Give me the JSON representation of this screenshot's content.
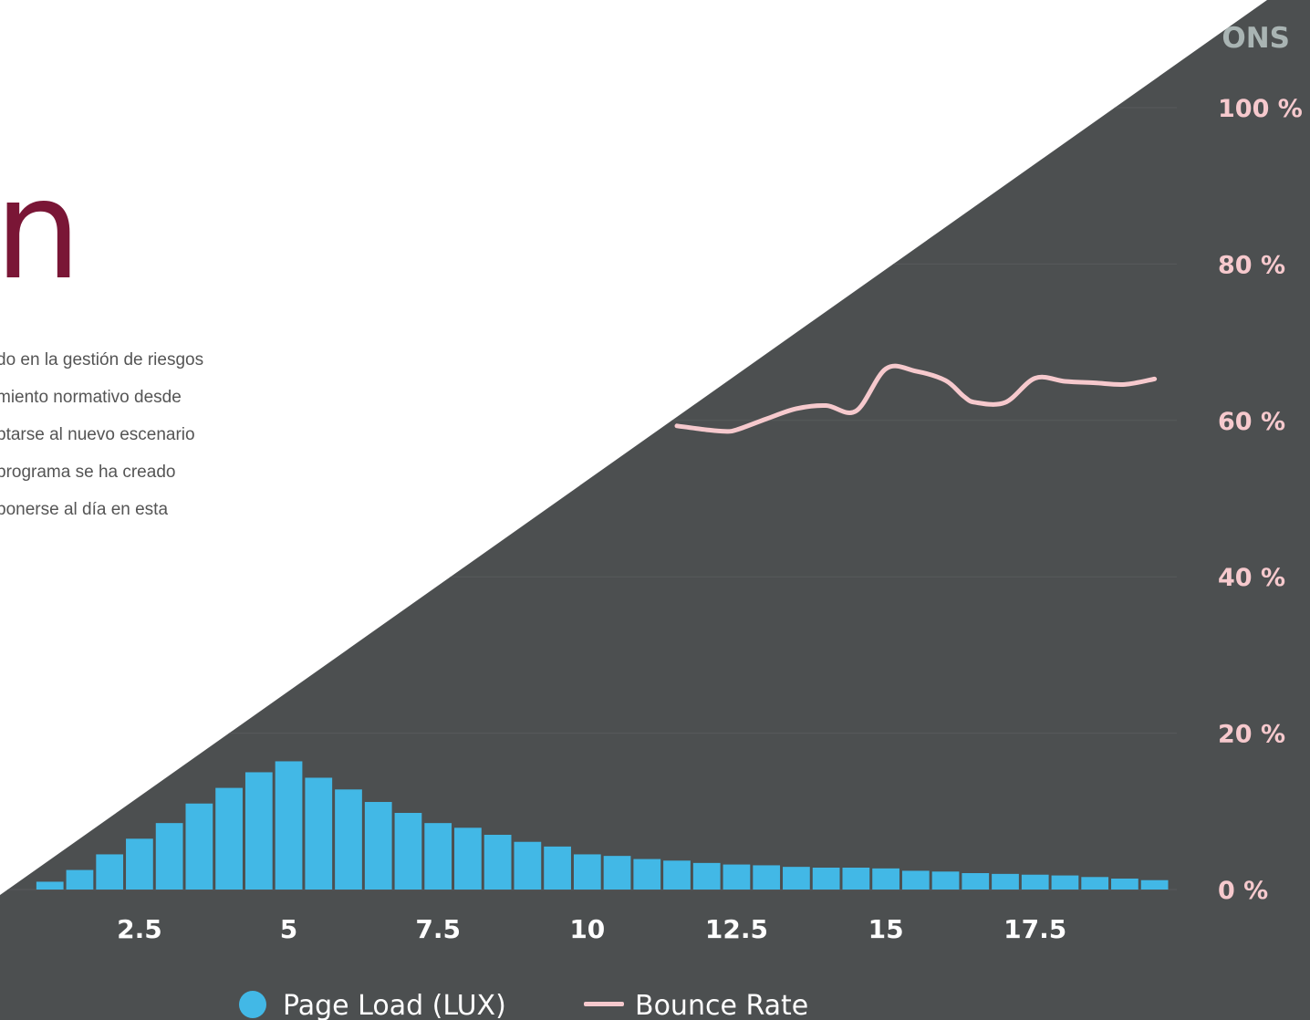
{
  "hero": {
    "letter": "n",
    "lines": [
      "do en la gestión de riesgos",
      "miento normativo desde",
      "ptarse al nuevo escenario",
      " programa se ha creado",
      "ponerse al día en esta"
    ]
  },
  "colors": {
    "brand": "#7a1636",
    "panel": "#4c4f50",
    "bar": "#42b8e6",
    "line": "#f6c9cd"
  },
  "chart_data": {
    "type": "bar",
    "corner_label": "ONS",
    "x_ticks": [
      2.5,
      5,
      7.5,
      10,
      12.5,
      15,
      17.5
    ],
    "x_range": [
      0.5,
      19.75
    ],
    "y_ticks": [
      "100 %",
      "80 %",
      "60 %",
      "40 %",
      "20 %",
      "0 %"
    ],
    "y_range": [
      0,
      100
    ],
    "series": [
      {
        "name": "Page Load (LUX)",
        "type": "bar",
        "x": [
          1.0,
          1.5,
          2.0,
          2.5,
          3.0,
          3.5,
          4.0,
          4.5,
          5.0,
          5.5,
          6.0,
          6.5,
          7.0,
          7.5,
          8.0,
          8.5,
          9.0,
          9.5,
          10.0,
          10.5,
          11.0,
          11.5,
          12.0,
          12.5,
          13.0,
          13.5,
          14.0,
          14.5,
          15.0,
          15.5,
          16.0,
          16.5,
          17.0,
          17.5,
          18.0,
          18.5,
          19.0,
          19.5
        ],
        "values": [
          1.0,
          2.5,
          4.5,
          6.5,
          8.5,
          11,
          13,
          15,
          16.4,
          14.3,
          12.8,
          11.2,
          9.8,
          8.5,
          7.9,
          7.0,
          6.1,
          5.5,
          4.5,
          4.3,
          3.9,
          3.7,
          3.4,
          3.2,
          3.1,
          2.9,
          2.8,
          2.8,
          2.7,
          2.4,
          2.3,
          2.1,
          2.0,
          1.9,
          1.8,
          1.6,
          1.4,
          1.2
        ]
      },
      {
        "name": "Bounce Rate",
        "type": "line",
        "x": [
          11.5,
          12.0,
          12.3,
          12.5,
          13.0,
          13.5,
          14.0,
          14.5,
          15.0,
          15.5,
          16.0,
          16.3,
          16.5,
          17.0,
          17.5,
          18.0,
          18.5,
          19.0,
          19.5
        ],
        "values": [
          59.3,
          58.8,
          58.6,
          58.8,
          60.2,
          61.5,
          61.9,
          61.2,
          66.6,
          66.3,
          65.1,
          63.1,
          62.3,
          62.3,
          65.4,
          65.0,
          64.8,
          64.6,
          65.3
        ]
      }
    ]
  }
}
